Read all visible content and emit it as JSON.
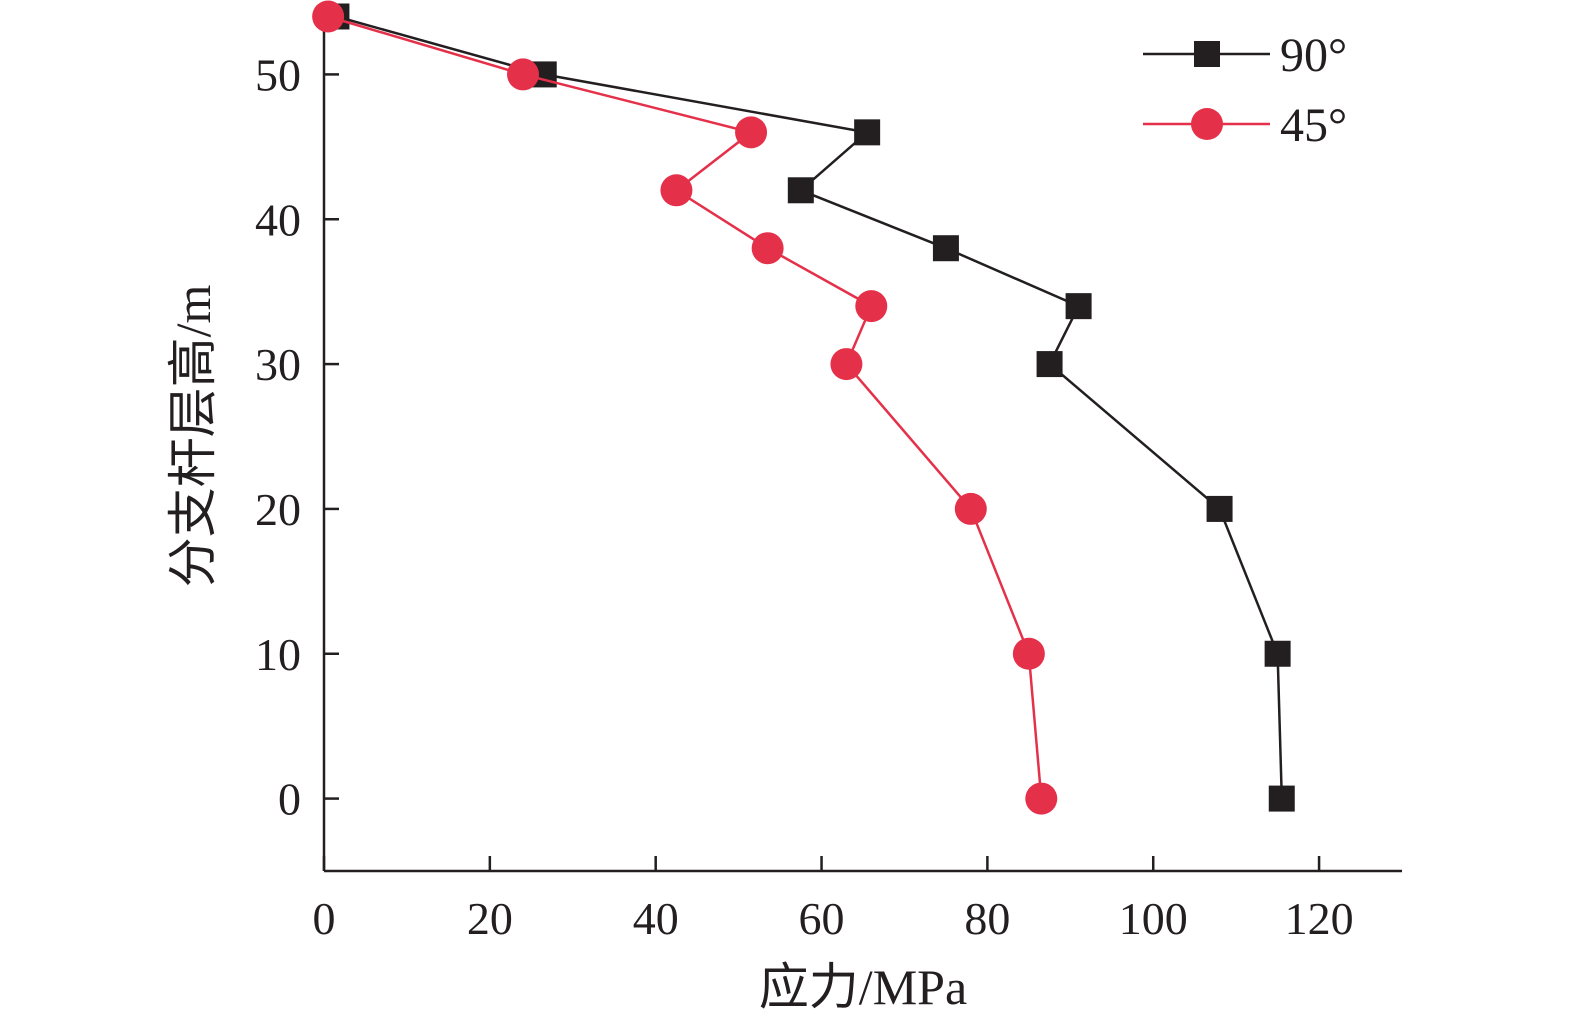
{
  "chart_data": {
    "type": "line",
    "title": "",
    "xlabel": "应力/MPa",
    "ylabel": "分支杆层高/m",
    "xlim": [
      0,
      130
    ],
    "ylim": [
      -5,
      55
    ],
    "xticks": [
      0,
      20,
      40,
      60,
      80,
      100,
      120
    ],
    "yticks": [
      0,
      10,
      20,
      30,
      40,
      50
    ],
    "grid": false,
    "legend_position": "top-right",
    "series": [
      {
        "name": "90°",
        "color": "#231f20",
        "marker": "square",
        "points": [
          {
            "x": 1.5,
            "y": 54
          },
          {
            "x": 26.5,
            "y": 50
          },
          {
            "x": 65.5,
            "y": 46
          },
          {
            "x": 57.5,
            "y": 42
          },
          {
            "x": 75,
            "y": 38
          },
          {
            "x": 91,
            "y": 34
          },
          {
            "x": 87.5,
            "y": 30
          },
          {
            "x": 108,
            "y": 20
          },
          {
            "x": 115,
            "y": 10
          },
          {
            "x": 115.5,
            "y": 0
          }
        ]
      },
      {
        "name": "45°",
        "color": "#e5304a",
        "marker": "circle",
        "points": [
          {
            "x": 0.5,
            "y": 54
          },
          {
            "x": 24,
            "y": 50
          },
          {
            "x": 51.5,
            "y": 46
          },
          {
            "x": 42.5,
            "y": 42
          },
          {
            "x": 53.5,
            "y": 38
          },
          {
            "x": 66,
            "y": 34
          },
          {
            "x": 63,
            "y": 30
          },
          {
            "x": 78,
            "y": 20
          },
          {
            "x": 85,
            "y": 10
          },
          {
            "x": 86.5,
            "y": 0
          }
        ]
      }
    ]
  }
}
